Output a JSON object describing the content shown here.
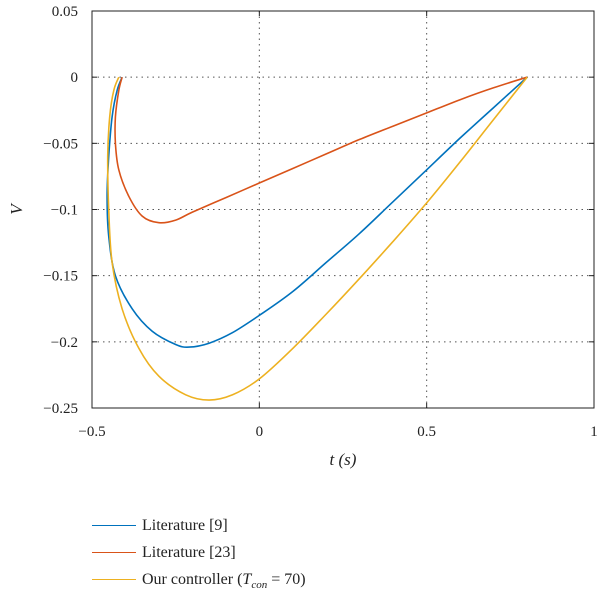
{
  "chart_data": {
    "type": "line",
    "title": "",
    "xlabel": "t (s)",
    "ylabel": "V",
    "xlim": [
      -0.5,
      1
    ],
    "ylim": [
      -0.25,
      0.05
    ],
    "xticks": [
      -0.5,
      0,
      0.5,
      1
    ],
    "xtick_labels": [
      "−0.5",
      "0",
      "0.5",
      "1"
    ],
    "yticks": [
      0.05,
      0,
      -0.05,
      -0.1,
      -0.15,
      -0.2,
      -0.25
    ],
    "ytick_labels": [
      "0.05",
      "0",
      "−0.05",
      "−0.1",
      "−0.15",
      "−0.2",
      "−0.25"
    ],
    "grid": true,
    "legend_position": "below",
    "series": [
      {
        "name": "Literature [9]",
        "legend_label": "Literature [9]",
        "color": "#0072BD",
        "x": [
          -0.41,
          -0.425,
          -0.44,
          -0.45,
          -0.455,
          -0.45,
          -0.43,
          -0.38,
          -0.32,
          -0.25,
          -0.21,
          -0.15,
          -0.08,
          0,
          0.1,
          0.2,
          0.3,
          0.4,
          0.5,
          0.6,
          0.7,
          0.8
        ],
        "y": [
          0,
          -0.01,
          -0.03,
          -0.06,
          -0.09,
          -0.12,
          -0.15,
          -0.175,
          -0.192,
          -0.202,
          -0.204,
          -0.201,
          -0.193,
          -0.18,
          -0.162,
          -0.14,
          -0.118,
          -0.094,
          -0.07,
          -0.046,
          -0.023,
          0
        ]
      },
      {
        "name": "Literature [23]",
        "legend_label": "Literature [23]",
        "color": "#D95319",
        "x": [
          -0.41,
          -0.42,
          -0.43,
          -0.43,
          -0.42,
          -0.39,
          -0.35,
          -0.3,
          -0.25,
          -0.2,
          -0.1,
          0,
          0.1,
          0.2,
          0.3,
          0.4,
          0.5,
          0.6,
          0.7,
          0.8
        ],
        "y": [
          0,
          -0.01,
          -0.03,
          -0.05,
          -0.07,
          -0.09,
          -0.105,
          -0.11,
          -0.108,
          -0.102,
          -0.091,
          -0.08,
          -0.069,
          -0.058,
          -0.047,
          -0.037,
          -0.027,
          -0.017,
          -0.008,
          0
        ]
      },
      {
        "name": "Our controller (T_con = 70)",
        "legend_label": "Our controller",
        "legend_symbol": "T",
        "legend_subscript": "con",
        "legend_suffix": "= 70",
        "color": "#EDB120",
        "x": [
          -0.42,
          -0.435,
          -0.447,
          -0.453,
          -0.45,
          -0.44,
          -0.41,
          -0.36,
          -0.3,
          -0.22,
          -0.15,
          -0.08,
          0,
          0.1,
          0.2,
          0.3,
          0.4,
          0.5,
          0.6,
          0.7,
          0.8
        ],
        "y": [
          0,
          -0.01,
          -0.03,
          -0.06,
          -0.1,
          -0.14,
          -0.175,
          -0.205,
          -0.226,
          -0.24,
          -0.244,
          -0.24,
          -0.228,
          -0.205,
          -0.179,
          -0.152,
          -0.124,
          -0.095,
          -0.064,
          -0.032,
          0
        ]
      }
    ]
  }
}
